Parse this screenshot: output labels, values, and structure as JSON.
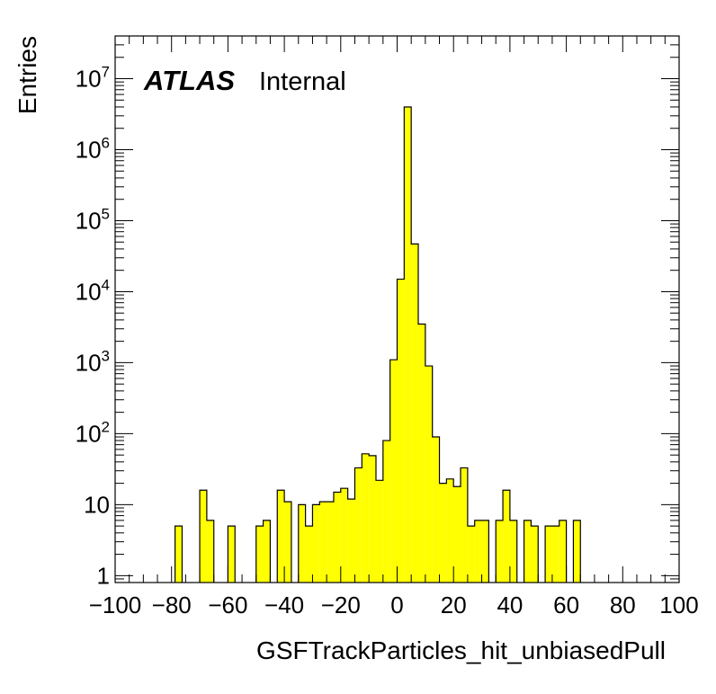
{
  "chart_data": {
    "type": "bar",
    "title": "",
    "label": {
      "experiment": "ATLAS",
      "status": "Internal"
    },
    "xlabel": "GSFTrackParticles_hit_unbiasedPull",
    "ylabel": "Entries",
    "xlim": [
      -100,
      100
    ],
    "ylim": [
      0.8,
      40000000
    ],
    "yscale": "log",
    "bin_width": 2.5,
    "x_ticks": [
      -100,
      -80,
      -60,
      -40,
      -20,
      0,
      20,
      40,
      60,
      80,
      100
    ],
    "x_tick_labels": [
      "−100",
      "−80",
      "−60",
      "−40",
      "−20",
      "0",
      "20",
      "40",
      "60",
      "80",
      "100"
    ],
    "y_ticks": [
      {
        "value": 1,
        "base": "1",
        "exp": ""
      },
      {
        "value": 10,
        "base": "10",
        "exp": ""
      },
      {
        "value": 100,
        "base": "10",
        "exp": "2"
      },
      {
        "value": 1000,
        "base": "10",
        "exp": "3"
      },
      {
        "value": 10000,
        "base": "10",
        "exp": "4"
      },
      {
        "value": 100000,
        "base": "10",
        "exp": "5"
      },
      {
        "value": 1000000,
        "base": "10",
        "exp": "6"
      },
      {
        "value": 10000000,
        "base": "10",
        "exp": "7"
      }
    ],
    "fill_color": "#ffff00",
    "line_color": "#000000",
    "bins": [
      {
        "x": -77.5,
        "y": 5
      },
      {
        "x": -68.75,
        "y": 16
      },
      {
        "x": -66.25,
        "y": 6
      },
      {
        "x": -58.75,
        "y": 5
      },
      {
        "x": -48.75,
        "y": 5
      },
      {
        "x": -46.25,
        "y": 6
      },
      {
        "x": -41.25,
        "y": 16
      },
      {
        "x": -38.75,
        "y": 11
      },
      {
        "x": -33.75,
        "y": 10
      },
      {
        "x": -31.25,
        "y": 5
      },
      {
        "x": -28.75,
        "y": 10
      },
      {
        "x": -26.25,
        "y": 11
      },
      {
        "x": -23.75,
        "y": 11
      },
      {
        "x": -21.25,
        "y": 15
      },
      {
        "x": -18.75,
        "y": 17
      },
      {
        "x": -16.25,
        "y": 12
      },
      {
        "x": -13.75,
        "y": 33
      },
      {
        "x": -11.25,
        "y": 52
      },
      {
        "x": -8.75,
        "y": 49
      },
      {
        "x": -6.25,
        "y": 22
      },
      {
        "x": -3.75,
        "y": 80
      },
      {
        "x": -1.25,
        "y": 1100
      },
      {
        "x": 1.25,
        "y": 15000
      },
      {
        "x": 3.75,
        "y": 4000000
      },
      {
        "x": 6.25,
        "y": 47000
      },
      {
        "x": 8.75,
        "y": 3500
      },
      {
        "x": 11.25,
        "y": 900
      },
      {
        "x": 13.75,
        "y": 90
      },
      {
        "x": 16.25,
        "y": 20
      },
      {
        "x": 18.75,
        "y": 23
      },
      {
        "x": 21.25,
        "y": 18
      },
      {
        "x": 23.75,
        "y": 33
      },
      {
        "x": 26.25,
        "y": 5
      },
      {
        "x": 28.75,
        "y": 6
      },
      {
        "x": 31.25,
        "y": 6
      },
      {
        "x": 36.25,
        "y": 6
      },
      {
        "x": 38.75,
        "y": 16
      },
      {
        "x": 41.25,
        "y": 6
      },
      {
        "x": 46.25,
        "y": 6
      },
      {
        "x": 48.75,
        "y": 5
      },
      {
        "x": 53.75,
        "y": 5
      },
      {
        "x": 56.25,
        "y": 5
      },
      {
        "x": 58.75,
        "y": 6
      },
      {
        "x": 63.75,
        "y": 6
      }
    ]
  }
}
